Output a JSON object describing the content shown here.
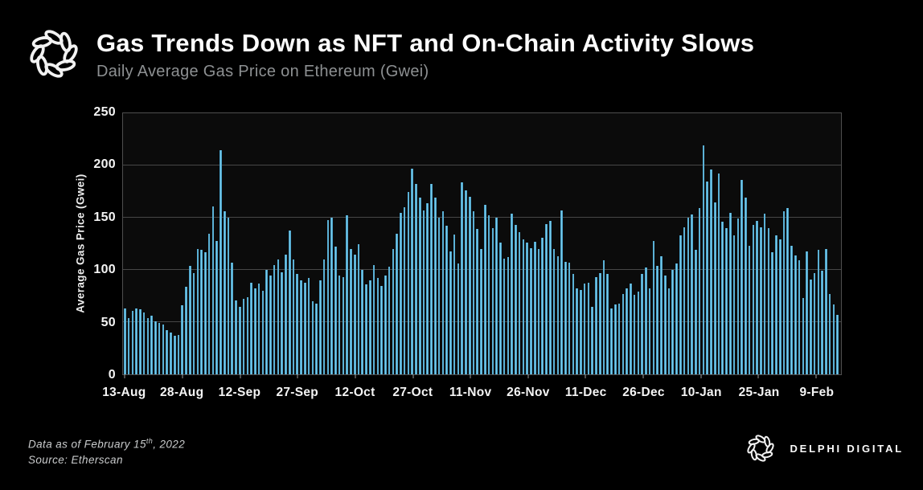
{
  "header": {
    "title": "Gas Trends Down as NFT and On-Chain Activity Slows",
    "subtitle": "Daily Average Gas Price on Ethereum (Gwei)"
  },
  "footer": {
    "note_prefix": "Data as of February 15",
    "note_sup": "th",
    "note_suffix": ", 2022",
    "source": "Source:  Etherscan",
    "brand": "DELPHI DIGITAL"
  },
  "icons": {
    "top_left": "delphi-knot-logo",
    "bottom_right": "delphi-knot-logo-small"
  },
  "colors": {
    "background": "#000000",
    "bar": "#4FAEDB",
    "bar_core": "#7CCFEC",
    "grid": "#474747",
    "plot_border": "#4E4E4E",
    "subtitle": "#8D9092",
    "tick_text": "#F4F4F4",
    "note_text": "#C9CBCC"
  },
  "chart_data": {
    "type": "bar",
    "title": "Gas Trends Down as NFT and On-Chain Activity Slows",
    "subtitle": "Daily Average Gas Price on Ethereum (Gwei)",
    "xlabel": "",
    "ylabel": "Average Gas Price (Gwei)",
    "ylim": [
      0,
      250
    ],
    "yticks": [
      0,
      50,
      100,
      150,
      200,
      250
    ],
    "grid": "horizontal",
    "legend": "none",
    "period": {
      "start": "13-Aug (2021)",
      "end": "15-Feb (2022)",
      "frequency": "daily"
    },
    "x_tick_labels": [
      "13-Aug",
      "28-Aug",
      "12-Sep",
      "27-Sep",
      "12-Oct",
      "27-Oct",
      "11-Nov",
      "26-Nov",
      "11-Dec",
      "26-Dec",
      "10-Jan",
      "25-Jan",
      "9-Feb"
    ],
    "x_tick_days": [
      0,
      15,
      30,
      45,
      60,
      75,
      90,
      105,
      120,
      135,
      150,
      165,
      180
    ],
    "values": [
      63,
      54,
      61,
      63,
      62,
      59,
      54,
      56,
      51,
      49,
      48,
      42,
      40,
      37,
      38,
      66,
      84,
      104,
      97,
      120,
      119,
      117,
      135,
      161,
      128,
      215,
      156,
      150,
      107,
      71,
      65,
      72,
      74,
      88,
      82,
      87,
      80,
      100,
      95,
      105,
      110,
      98,
      115,
      138,
      110,
      96,
      90,
      88,
      92,
      70,
      68,
      90,
      110,
      148,
      150,
      122,
      95,
      93,
      152,
      120,
      115,
      125,
      100,
      86,
      90,
      105,
      92,
      85,
      95,
      103,
      120,
      135,
      155,
      160,
      175,
      197,
      182,
      169,
      157,
      164,
      182,
      169,
      150,
      156,
      142,
      118,
      134,
      106,
      184,
      176,
      170,
      156,
      139,
      120,
      162,
      152,
      140,
      150,
      126,
      111,
      112,
      154,
      143,
      136,
      129,
      126,
      121,
      127,
      120,
      131,
      144,
      147,
      120,
      113,
      157,
      108,
      107,
      96,
      82,
      81,
      87,
      88,
      65,
      93,
      97,
      109,
      96,
      63,
      67,
      68,
      77,
      82,
      87,
      76,
      79,
      96,
      102,
      82,
      128,
      104,
      113,
      95,
      82,
      100,
      106,
      133,
      141,
      150,
      153,
      119,
      159,
      219,
      185,
      196,
      165,
      192,
      146,
      140,
      155,
      133,
      149,
      186,
      169,
      123,
      143,
      147,
      141,
      154,
      140,
      117,
      133,
      129,
      156,
      159,
      123,
      114,
      109,
      73,
      118,
      91,
      97,
      119,
      99,
      120,
      77,
      67,
      57
    ]
  }
}
